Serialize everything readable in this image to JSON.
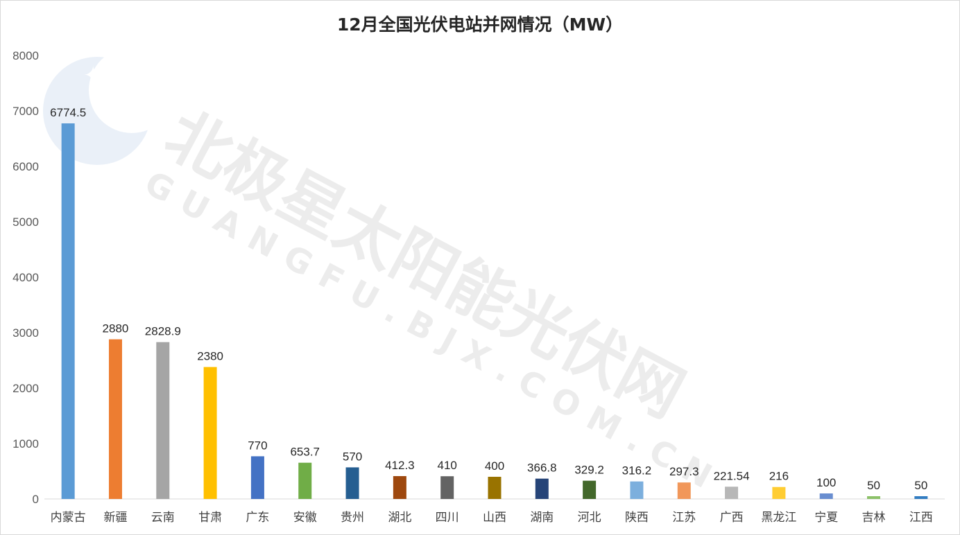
{
  "chart_data": {
    "type": "bar",
    "title": "12月全国光伏电站并网情况（MW）",
    "xlabel": "",
    "ylabel": "",
    "ylim": [
      0,
      8000
    ],
    "yticks": [
      0,
      1000,
      2000,
      3000,
      4000,
      5000,
      6000,
      7000,
      8000
    ],
    "grid": false,
    "legend": "none",
    "categories": [
      "内蒙古",
      "新疆",
      "云南",
      "甘肃",
      "广东",
      "安徽",
      "贵州",
      "湖北",
      "四川",
      "山西",
      "湖南",
      "河北",
      "陕西",
      "江苏",
      "广西",
      "黑龙江",
      "宁夏",
      "吉林",
      "江西"
    ],
    "values": [
      6774.5,
      2880,
      2828.9,
      2380,
      770,
      653.7,
      570,
      412.3,
      410,
      400,
      366.8,
      329.2,
      316.2,
      297.3,
      221.54,
      216,
      100,
      50,
      50
    ],
    "data_labels": [
      "6774.5",
      "2880",
      "2828.9",
      "2380",
      "770",
      "653.7",
      "570",
      "412.3",
      "410",
      "400",
      "366.8",
      "329.2",
      "316.2",
      "297.3",
      "221.54",
      "216",
      "100",
      "50",
      "50"
    ],
    "colors": [
      "#5b9bd5",
      "#ed7d31",
      "#a5a5a5",
      "#ffc000",
      "#4472c4",
      "#70ad47",
      "#255e91",
      "#9e480e",
      "#636363",
      "#997300",
      "#264478",
      "#43682b",
      "#7cafdd",
      "#f1975a",
      "#b7b7b7",
      "#ffcd33",
      "#698ed0",
      "#8cc168",
      "#327dc2"
    ]
  },
  "watermark": {
    "text": "北极星太阳能光伏网",
    "subtext": "GUANGFU.BJX.COM.CN"
  }
}
